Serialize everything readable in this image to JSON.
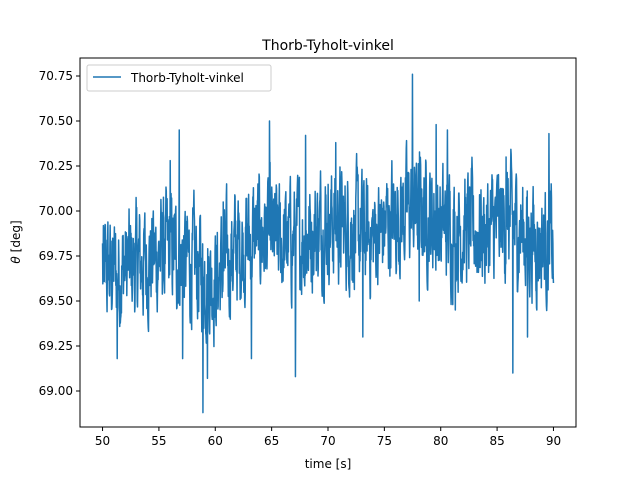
{
  "chart_data": {
    "type": "line",
    "title": "Thorb-Tyholt-vinkel",
    "xlabel": "time [s]",
    "ylabel_symbol": "θ",
    "ylabel_unit": "[deg]",
    "xlim": [
      48,
      92
    ],
    "ylim": [
      68.8,
      70.85
    ],
    "x_ticks": [
      50,
      55,
      60,
      65,
      70,
      75,
      80,
      85,
      90
    ],
    "y_ticks": [
      69.0,
      69.25,
      69.5,
      69.75,
      70.0,
      70.25,
      70.5,
      70.75
    ],
    "x_tick_labels": [
      "50",
      "55",
      "60",
      "65",
      "70",
      "75",
      "80",
      "85",
      "90"
    ],
    "y_tick_labels": [
      "69.00",
      "69.25",
      "69.50",
      "69.75",
      "70.00",
      "70.25",
      "70.50",
      "70.75"
    ],
    "legend_position": "upper-left",
    "grid": false,
    "series": [
      {
        "name": "Thorb-Tyholt-vinkel",
        "color": "#1f77b4",
        "x_start": 50,
        "x_end": 90,
        "samples": 1600,
        "trend_x": [
          50,
          52,
          54,
          56,
          58,
          60,
          62,
          64,
          66,
          68,
          70,
          72,
          74,
          76,
          78,
          80,
          82,
          84,
          86,
          88,
          90
        ],
        "trend_y": [
          69.65,
          69.68,
          69.72,
          69.78,
          69.7,
          69.62,
          69.8,
          69.88,
          69.82,
          69.85,
          69.95,
          69.9,
          69.85,
          69.98,
          70.02,
          69.92,
          69.9,
          69.88,
          69.95,
          69.85,
          69.8
        ],
        "spread": 0.25,
        "notable_points": [
          {
            "x": 50.0,
            "y": 69.82
          },
          {
            "x": 51.3,
            "y": 69.18
          },
          {
            "x": 52.5,
            "y": 69.83
          },
          {
            "x": 54.5,
            "y": 70.0
          },
          {
            "x": 56.0,
            "y": 70.28
          },
          {
            "x": 56.8,
            "y": 70.45
          },
          {
            "x": 57.1,
            "y": 69.18
          },
          {
            "x": 58.9,
            "y": 68.88
          },
          {
            "x": 59.3,
            "y": 69.07
          },
          {
            "x": 60.7,
            "y": 70.05
          },
          {
            "x": 63.2,
            "y": 69.18
          },
          {
            "x": 64.8,
            "y": 70.5
          },
          {
            "x": 67.1,
            "y": 69.08
          },
          {
            "x": 68.0,
            "y": 70.42
          },
          {
            "x": 70.7,
            "y": 70.38
          },
          {
            "x": 73.1,
            "y": 69.3
          },
          {
            "x": 77.5,
            "y": 70.76
          },
          {
            "x": 78.1,
            "y": 69.5
          },
          {
            "x": 79.6,
            "y": 70.48
          },
          {
            "x": 80.6,
            "y": 70.45
          },
          {
            "x": 81.3,
            "y": 69.45
          },
          {
            "x": 85.8,
            "y": 70.3
          },
          {
            "x": 86.4,
            "y": 69.1
          },
          {
            "x": 87.7,
            "y": 69.3
          },
          {
            "x": 89.6,
            "y": 70.43
          },
          {
            "x": 90.0,
            "y": 69.6
          }
        ]
      }
    ]
  }
}
